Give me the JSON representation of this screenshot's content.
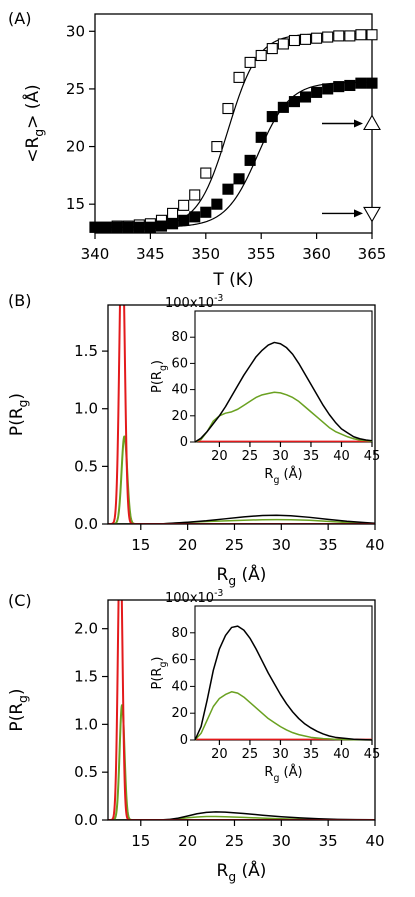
{
  "figure": {
    "panels": [
      {
        "letter": "(A)",
        "type": "scatter",
        "xlabel": "T (K)",
        "ylabel_main": "<R",
        "ylabel_sub": "g",
        "ylabel_tail": "> (Å)",
        "xlim": [
          340,
          365
        ],
        "ylim": [
          12.5,
          31.5
        ],
        "xticks": [
          340,
          345,
          350,
          355,
          360,
          365
        ],
        "yticks": [
          15,
          20,
          25,
          30
        ],
        "series": [
          {
            "marker": "open-square",
            "x": [
              340,
              341,
              342,
              343,
              344,
              345,
              346,
              347,
              348,
              349,
              350,
              351,
              352,
              353,
              354,
              355,
              356,
              357,
              358,
              359,
              360,
              361,
              362,
              363,
              364,
              365
            ],
            "y": [
              13.0,
              13.0,
              13.1,
              13.1,
              13.2,
              13.3,
              13.6,
              14.2,
              14.9,
              15.8,
              17.7,
              20.0,
              23.3,
              26.0,
              27.3,
              27.9,
              28.5,
              28.9,
              29.2,
              29.3,
              29.4,
              29.5,
              29.6,
              29.6,
              29.7,
              29.7
            ],
            "fit": true
          },
          {
            "marker": "filled-square",
            "x": [
              340,
              341,
              342,
              343,
              344,
              345,
              346,
              347,
              348,
              349,
              350,
              351,
              352,
              353,
              354,
              355,
              356,
              357,
              358,
              359,
              360,
              361,
              362,
              363,
              364,
              365
            ],
            "y": [
              13.0,
              13.0,
              13.0,
              13.0,
              13.0,
              13.0,
              13.1,
              13.3,
              13.6,
              13.9,
              14.3,
              15.0,
              16.3,
              17.2,
              18.8,
              20.8,
              22.6,
              23.4,
              23.9,
              24.3,
              24.7,
              25.0,
              25.2,
              25.3,
              25.5,
              25.5
            ],
            "fit": true
          }
        ],
        "annotations": [
          {
            "marker": "open-triangle-up",
            "x": 365,
            "y": 22.0
          },
          {
            "marker": "open-triangle-down",
            "x": 365,
            "y": 14.2
          }
        ]
      },
      {
        "letter": "(B)",
        "type": "line",
        "xlabel_main": "R",
        "xlabel_sub": "g",
        "xlabel_tail": " (Å)",
        "ylabel_main": "P(R",
        "ylabel_sub": "g",
        "ylabel_tail": ")",
        "xlim": [
          11.5,
          40
        ],
        "ylim": [
          0,
          1.9
        ],
        "xticks": [
          15,
          20,
          25,
          30,
          35,
          40
        ],
        "yticks": [
          0.0,
          0.5,
          1.0,
          1.5
        ],
        "ytick_labels": [
          "0.0",
          "0.5",
          "1.0",
          "1.5"
        ],
        "series": [
          {
            "color": "#e31a1c",
            "kind": "peak",
            "center": 13.0,
            "height": 2.6,
            "width": 0.28
          },
          {
            "color": "#6aa121",
            "kind": "peak",
            "center": 13.25,
            "height": 0.76,
            "width": 0.3
          },
          {
            "color": "#6aa121",
            "kind": "broad",
            "x": [
              17,
              18,
              20,
              22,
              24,
              26,
              28,
              29.5,
              31,
              33,
              35,
              37,
              39,
              40
            ],
            "y": [
              0.0,
              0.004,
              0.014,
              0.022,
              0.027,
              0.033,
              0.037,
              0.038,
              0.037,
              0.032,
              0.023,
              0.013,
              0.006,
              0.004
            ]
          },
          {
            "color": "#000000",
            "kind": "broad",
            "x": [
              17,
              18,
              20,
              22,
              24,
              26,
              28,
              29.5,
              31,
              33,
              35,
              37,
              39,
              40
            ],
            "y": [
              0.0,
              0.005,
              0.015,
              0.028,
              0.045,
              0.062,
              0.074,
              0.076,
              0.072,
              0.058,
              0.04,
              0.024,
              0.012,
              0.007
            ]
          }
        ],
        "inset": {
          "multiplier": "100x10",
          "multiplier_exp": "-3",
          "ylabel_main": "P(R",
          "ylabel_sub": "g",
          "ylabel_tail": ")",
          "xlabel_main": "R",
          "xlabel_sub": "g",
          "xlabel_tail": " (Å)",
          "xlim": [
            16,
            45
          ],
          "ylim": [
            0,
            100
          ],
          "xticks": [
            20,
            25,
            30,
            35,
            40,
            45
          ],
          "yticks": [
            0,
            20,
            40,
            60,
            80
          ],
          "series": [
            {
              "color": "#e31a1c",
              "x": [
                16,
                45
              ],
              "y": [
                0.5,
                0.5
              ]
            },
            {
              "color": "#6aa121",
              "x": [
                16,
                17,
                18,
                19,
                20,
                21,
                22,
                23,
                24,
                25,
                26,
                27,
                28,
                29,
                30,
                31,
                32,
                33,
                34,
                35,
                36,
                37,
                38,
                39,
                40,
                41,
                42,
                43,
                44,
                45
              ],
              "y": [
                0,
                2,
                8,
                16,
                20,
                22,
                23,
                25,
                28,
                31,
                34,
                36,
                37,
                38,
                37.5,
                36,
                34,
                31,
                27,
                23,
                19,
                15,
                11,
                8,
                6,
                4,
                2.5,
                1.5,
                1,
                0.5
              ]
            },
            {
              "color": "#000000",
              "x": [
                16,
                17,
                18,
                19,
                20,
                21,
                22,
                23,
                24,
                25,
                26,
                27,
                28,
                29,
                30,
                31,
                32,
                33,
                34,
                35,
                36,
                37,
                38,
                39,
                40,
                41,
                42,
                43,
                44,
                45
              ],
              "y": [
                0,
                3,
                8,
                14,
                20,
                27,
                35,
                43,
                51,
                58,
                65,
                70,
                74,
                76,
                75,
                72,
                67,
                60,
                52,
                44,
                36,
                28,
                21,
                15,
                10,
                7,
                4,
                2.5,
                1.5,
                1
              ]
            }
          ]
        }
      },
      {
        "letter": "(C)",
        "type": "line",
        "xlabel_main": "R",
        "xlabel_sub": "g",
        "xlabel_tail": " (Å)",
        "ylabel_main": "P(R",
        "ylabel_sub": "g",
        "ylabel_tail": ")",
        "xlim": [
          11.5,
          40
        ],
        "ylim": [
          0,
          2.3
        ],
        "xticks": [
          15,
          20,
          25,
          30,
          35,
          40
        ],
        "yticks": [
          0.0,
          0.5,
          1.0,
          1.5,
          2.0
        ],
        "ytick_labels": [
          "0.0",
          "0.5",
          "1.0",
          "1.5",
          "2.0"
        ],
        "series": [
          {
            "color": "#e31a1c",
            "kind": "peak",
            "center": 12.8,
            "height": 3.0,
            "width": 0.24
          },
          {
            "color": "#6aa121",
            "kind": "peak",
            "center": 13.0,
            "height": 1.2,
            "width": 0.26
          },
          {
            "color": "#6aa121",
            "kind": "broad",
            "x": [
              17,
              18,
              19,
              20,
              21,
              22,
              23,
              24,
              26,
              28,
              30,
              32,
              34,
              36,
              38,
              40
            ],
            "y": [
              0.0,
              0.004,
              0.013,
              0.024,
              0.032,
              0.036,
              0.036,
              0.034,
              0.027,
              0.02,
              0.013,
              0.008,
              0.005,
              0.003,
              0.002,
              0.001
            ]
          },
          {
            "color": "#000000",
            "kind": "broad",
            "x": [
              17,
              18,
              19,
              20,
              21,
              22,
              23,
              24,
              26,
              28,
              30,
              32,
              34,
              36,
              38,
              40
            ],
            "y": [
              0.0,
              0.006,
              0.02,
              0.042,
              0.065,
              0.08,
              0.085,
              0.082,
              0.068,
              0.05,
              0.034,
              0.022,
              0.013,
              0.007,
              0.004,
              0.002
            ]
          }
        ],
        "inset": {
          "multiplier": "100x10",
          "multiplier_exp": "-3",
          "ylabel_main": "P(R",
          "ylabel_sub": "g",
          "ylabel_tail": ")",
          "xlabel_main": "R",
          "xlabel_sub": "g",
          "xlabel_tail": " (Å)",
          "xlim": [
            16,
            45
          ],
          "ylim": [
            0,
            100
          ],
          "xticks": [
            20,
            25,
            30,
            35,
            40,
            45
          ],
          "yticks": [
            0,
            20,
            40,
            60,
            80
          ],
          "series": [
            {
              "color": "#e31a1c",
              "x": [
                16,
                45
              ],
              "y": [
                0.5,
                0.5
              ]
            },
            {
              "color": "#6aa121",
              "x": [
                16,
                17,
                18,
                19,
                20,
                21,
                22,
                23,
                24,
                25,
                26,
                27,
                28,
                29,
                30,
                31,
                32,
                33,
                34,
                35,
                36,
                37,
                38,
                39,
                40,
                41,
                42,
                43,
                44,
                45
              ],
              "y": [
                0,
                5,
                15,
                25,
                31,
                34,
                36,
                35,
                32,
                28,
                24,
                20,
                16,
                13,
                10,
                7.5,
                5.5,
                4,
                3,
                2,
                1.5,
                1,
                0.8,
                0.5,
                0.4,
                0.3,
                0.2,
                0.2,
                0.1,
                0.1
              ]
            },
            {
              "color": "#000000",
              "x": [
                16,
                17,
                18,
                19,
                20,
                21,
                22,
                23,
                24,
                25,
                26,
                27,
                28,
                29,
                30,
                31,
                32,
                33,
                34,
                35,
                36,
                37,
                38,
                39,
                40,
                41,
                42,
                43,
                44,
                45
              ],
              "y": [
                0,
                10,
                30,
                52,
                68,
                78,
                84,
                85,
                82,
                76,
                68,
                59,
                50,
                42,
                34,
                27,
                21,
                16,
                12,
                9,
                6.5,
                4.5,
                3,
                2,
                1.5,
                1,
                0.6,
                0.4,
                0.2,
                0.1
              ]
            }
          ]
        }
      }
    ]
  },
  "chart_data": [
    {
      "type": "scatter",
      "xlabel": "T (K)",
      "ylabel": "<Rg> (Å)",
      "xlim": [
        340,
        365
      ],
      "ylim": [
        12.5,
        31.5
      ],
      "series": [
        {
          "marker": "open square",
          "x": [
            340,
            341,
            342,
            343,
            344,
            345,
            346,
            347,
            348,
            349,
            350,
            351,
            352,
            353,
            354,
            355,
            356,
            357,
            358,
            359,
            360,
            361,
            362,
            363,
            364,
            365
          ],
          "y": [
            13.0,
            13.0,
            13.1,
            13.1,
            13.2,
            13.3,
            13.6,
            14.2,
            14.9,
            15.8,
            17.7,
            20.0,
            23.3,
            26.0,
            27.3,
            27.9,
            28.5,
            28.9,
            29.2,
            29.3,
            29.4,
            29.5,
            29.6,
            29.6,
            29.7,
            29.7
          ]
        },
        {
          "marker": "filled square",
          "x": [
            340,
            341,
            342,
            343,
            344,
            345,
            346,
            347,
            348,
            349,
            350,
            351,
            352,
            353,
            354,
            355,
            356,
            357,
            358,
            359,
            360,
            361,
            362,
            363,
            364,
            365
          ],
          "y": [
            13.0,
            13.0,
            13.0,
            13.0,
            13.0,
            13.0,
            13.1,
            13.3,
            13.6,
            13.9,
            14.3,
            15.0,
            16.3,
            17.2,
            18.8,
            20.8,
            22.6,
            23.4,
            23.9,
            24.3,
            24.7,
            25.0,
            25.2,
            25.3,
            25.5,
            25.5
          ]
        }
      ]
    },
    {
      "type": "line",
      "xlabel": "Rg (Å)",
      "ylabel": "P(Rg)",
      "xlim": [
        11.5,
        40
      ],
      "ylim": [
        0,
        1.9
      ]
    },
    {
      "type": "line",
      "xlabel": "Rg (Å)",
      "ylabel": "P(Rg)",
      "xlim": [
        11.5,
        40
      ],
      "ylim": [
        0,
        2.3
      ]
    }
  ]
}
